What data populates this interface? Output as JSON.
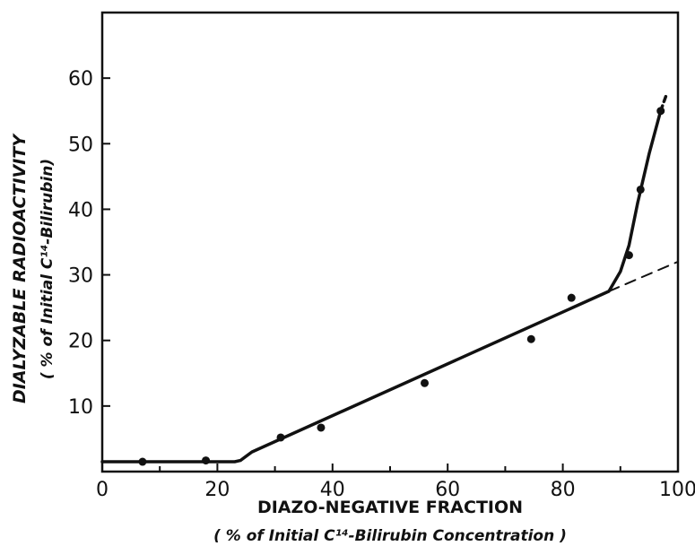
{
  "chart_data": {
    "type": "scatter",
    "title": "",
    "xlabel": "DIAZO-NEGATIVE FRACTION",
    "xlabel_sub": "( % of Initial C¹⁴-Bilirubin Concentration )",
    "ylabel": "DIALYZABLE RADIOACTIVITY",
    "ylabel_sub": "( % of Initial C¹⁴-Bilirubin)",
    "xlim": [
      0,
      100
    ],
    "ylim": [
      0,
      70
    ],
    "x_ticks": [
      0,
      20,
      40,
      60,
      80,
      100
    ],
    "x_tick_labels": [
      "0",
      "20",
      "40",
      "60",
      "80",
      "100"
    ],
    "y_ticks": [
      10,
      20,
      30,
      40,
      50,
      60
    ],
    "y_tick_labels": [
      "10",
      "20",
      "30",
      "40",
      "50",
      "60"
    ],
    "grid": false,
    "series": [
      {
        "kind": "points",
        "x": [
          7,
          18,
          31,
          38,
          56,
          74.5,
          81.5,
          91.5,
          93.5,
          97
        ],
        "y": [
          1.5,
          1.7,
          5.2,
          6.7,
          13.5,
          20.2,
          26.5,
          33,
          43,
          55
        ]
      },
      {
        "kind": "fitted-curve",
        "style": "solid",
        "x": [
          0,
          23,
          24,
          26,
          88,
          90,
          91.5,
          93,
          95,
          97
        ],
        "y": [
          1.5,
          1.5,
          1.7,
          3,
          27.5,
          30.5,
          34.5,
          41,
          48.5,
          55
        ]
      },
      {
        "kind": "fitted-curve",
        "style": "dashed",
        "x": [
          97,
          98
        ],
        "y": [
          55,
          57.5
        ]
      },
      {
        "kind": "extrapolation",
        "style": "dashed",
        "x": [
          88,
          100
        ],
        "y": [
          27.5,
          32
        ]
      }
    ]
  }
}
